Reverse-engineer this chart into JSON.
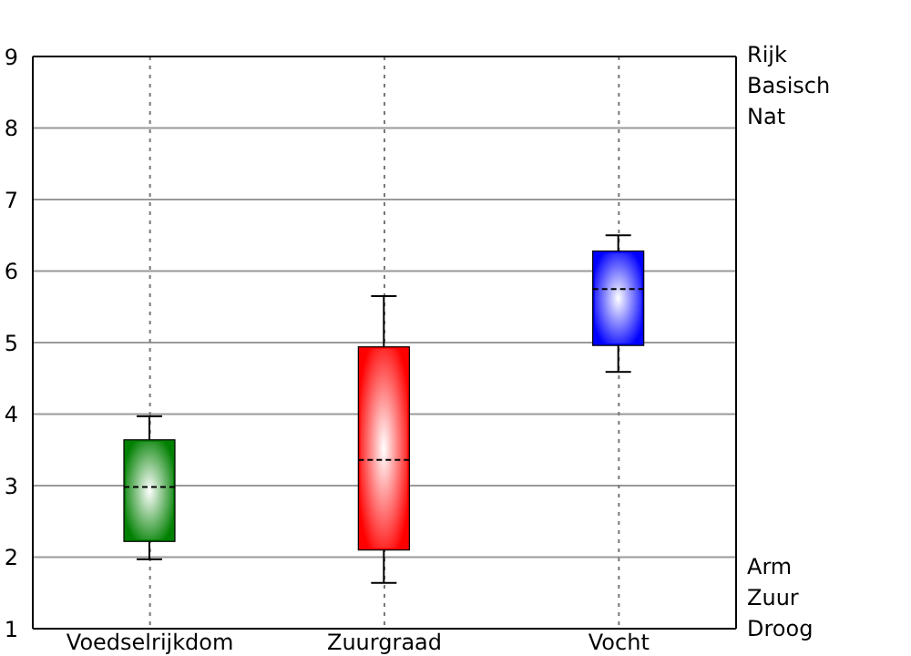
{
  "chart_data": {
    "type": "box",
    "categories": [
      "Voedselrijkdom",
      "Zuurgraad",
      "Vocht"
    ],
    "boxes": [
      {
        "low": 1.97,
        "q1": 2.22,
        "median": 2.98,
        "q3": 3.64,
        "high": 3.97
      },
      {
        "low": 1.64,
        "q1": 2.1,
        "median": 3.36,
        "q3": 4.94,
        "high": 5.65
      },
      {
        "low": 4.59,
        "q1": 4.96,
        "median": 5.75,
        "q3": 6.28,
        "high": 6.5
      }
    ],
    "colors": [
      "#008000",
      "#ff0000",
      "#0000ff"
    ],
    "ylim": [
      1,
      9
    ],
    "yticks": [
      1,
      2,
      3,
      4,
      5,
      6,
      7,
      8,
      9
    ],
    "grid": true,
    "annotations": [
      "Rijk",
      "Basisch",
      "Nat",
      "Arm",
      "Zuur",
      "Droog"
    ]
  }
}
